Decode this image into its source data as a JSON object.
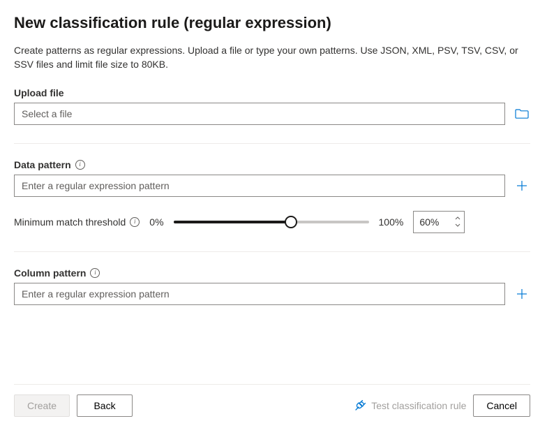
{
  "title": "New classification rule (regular expression)",
  "description": "Create patterns as regular expressions. Upload a file or type your own patterns. Use JSON, XML, PSV, TSV, CSV, or SSV files and limit file size to 80KB.",
  "upload": {
    "label": "Upload file",
    "placeholder": "Select a file"
  },
  "dataPattern": {
    "label": "Data pattern",
    "placeholder": "Enter a regular expression pattern"
  },
  "threshold": {
    "label": "Minimum match threshold",
    "minLabel": "0%",
    "maxLabel": "100%",
    "value": "60%",
    "percent": 60,
    "track_color": "#c8c6c4",
    "fill_color": "#1b1a19",
    "thumb_border": "#1b1a19"
  },
  "columnPattern": {
    "label": "Column pattern",
    "placeholder": "Enter a regular expression pattern"
  },
  "footer": {
    "create": "Create",
    "back": "Back",
    "test": "Test classification rule",
    "cancel": "Cancel"
  },
  "colors": {
    "accent": "#0078d4",
    "border": "#8a8886",
    "divider": "#edebe9",
    "text": "#323130",
    "muted": "#a19f9d"
  }
}
